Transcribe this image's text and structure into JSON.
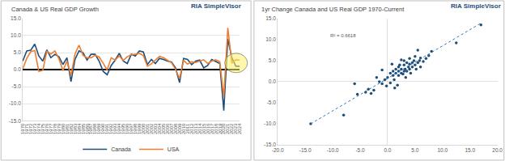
{
  "chart_data": [
    {
      "type": "line",
      "title": "Canada & US Real GDP Growth",
      "annotations": [
        {
          "text": "RIA SimpleVisor"
        }
      ],
      "x": [
        1970,
        1971,
        1972,
        1973,
        1974,
        1975,
        1976,
        1977,
        1978,
        1979,
        1980,
        1981,
        1982,
        1983,
        1984,
        1985,
        1986,
        1987,
        1988,
        1989,
        1990,
        1991,
        1992,
        1993,
        1994,
        1995,
        1996,
        1997,
        1998,
        1999,
        2000,
        2001,
        2002,
        2003,
        2004,
        2005,
        2006,
        2007,
        2008,
        2009,
        2010,
        2011,
        2012,
        2013,
        2014,
        2015,
        2016,
        2017,
        2018,
        2019,
        2020,
        2021,
        2022,
        2023,
        2024
      ],
      "series": [
        {
          "name": "Canada",
          "color": "#1f4e79",
          "values": [
            2.5,
            5.5,
            5.7,
            7.5,
            4.0,
            2.5,
            5.8,
            3.5,
            4.5,
            3.8,
            1.5,
            3.5,
            -3.5,
            3.0,
            5.5,
            5.0,
            2.8,
            4.5,
            4.5,
            2.5,
            -0.5,
            -1.5,
            1.2,
            2.8,
            4.8,
            2.5,
            1.8,
            4.5,
            4.0,
            5.5,
            5.2,
            1.5,
            3.0,
            1.8,
            3.3,
            3.0,
            2.5,
            2.2,
            0.5,
            -3.8,
            3.3,
            3.0,
            1.5,
            2.5,
            2.8,
            0.5,
            1.2,
            3.0,
            2.4,
            1.8,
            -12.0,
            9.0,
            3.5,
            1.0,
            1.0
          ]
        },
        {
          "name": "USA",
          "color": "#ed7d31",
          "values": [
            0.2,
            3.3,
            5.3,
            5.6,
            -0.5,
            -0.2,
            5.4,
            4.6,
            5.5,
            3.2,
            -0.3,
            2.5,
            -1.8,
            4.6,
            7.2,
            4.2,
            3.5,
            3.5,
            4.2,
            3.7,
            1.9,
            -0.1,
            3.5,
            2.8,
            4.0,
            2.7,
            3.8,
            4.4,
            4.5,
            4.8,
            4.1,
            1.0,
            1.7,
            2.8,
            3.9,
            3.5,
            2.8,
            2.0,
            0.1,
            -2.6,
            2.7,
            1.6,
            2.3,
            2.1,
            2.5,
            2.9,
            1.8,
            2.5,
            2.9,
            2.3,
            -8.0,
            12.3,
            1.9,
            2.9,
            2.8
          ]
        }
      ],
      "xlim": [
        1970,
        2024
      ],
      "xticks": [
        1970,
        1971,
        1972,
        1973,
        1974,
        1975,
        1976,
        1977,
        1978,
        1979,
        1980,
        1981,
        1982,
        1983,
        1984,
        1985,
        1986,
        1987,
        1988,
        1989,
        1990,
        1991,
        1992,
        1993,
        1994,
        1995,
        1996,
        1997,
        1998,
        1999,
        2000,
        2001,
        2002,
        2003,
        2004,
        2005,
        2006,
        2007,
        2008,
        2009,
        2010,
        2011,
        2012,
        2013,
        2014,
        2015,
        2016,
        2017,
        2018,
        2019,
        2020,
        2021,
        2022,
        2023,
        2024
      ],
      "ylim": [
        -15,
        15
      ],
      "yticks": [
        {
          "value": -15,
          "label": "-15.0"
        },
        {
          "value": -10,
          "label": "-10.0"
        },
        {
          "value": -5,
          "label": "-5.0"
        },
        {
          "value": 0,
          "label": "0.0"
        },
        {
          "value": 5,
          "label": "5.0"
        },
        {
          "value": 10,
          "label": "10.0"
        },
        {
          "value": 15,
          "label": "15.0"
        }
      ],
      "grid": true,
      "legend": "bottom"
    },
    {
      "type": "scatter",
      "title": "1yr Change Canada and US Real GDP 1970-Current",
      "annotations": [
        {
          "text": "R² = 0.6618"
        },
        {
          "text": "RIA SimpleVisor"
        }
      ],
      "series": [
        {
          "type": "scatter",
          "color": "#1f4e79",
          "marker": "circle",
          "x": [
            -14,
            17,
            12.5,
            -8,
            7,
            8,
            6,
            6.5,
            5.5,
            7.5,
            -4,
            -3.5,
            -3,
            -2.5,
            -1.5,
            -1,
            -0.5,
            -0.2,
            0,
            0.5,
            0.5,
            1,
            1,
            1.2,
            1.5,
            1.5,
            2,
            2,
            2,
            2.2,
            2.5,
            2.5,
            2.8,
            3,
            3,
            3,
            3.2,
            3.5,
            3.5,
            3.8,
            4,
            4,
            4,
            4.2,
            4.5,
            4.5,
            4.8,
            5,
            5,
            5.2,
            5.5,
            5.8,
            6,
            1.8,
            -1,
            -2,
            0.8,
            2.5,
            3.3,
            -5.5,
            -6,
            1.3
          ],
          "values": [
            -10,
            13.5,
            9.2,
            -7.9,
            5.5,
            7.2,
            5.6,
            4.8,
            7.5,
            6.2,
            -2.5,
            -1.8,
            -2.8,
            -2.0,
            0,
            -0.5,
            0.5,
            -1,
            1,
            -0.3,
            2,
            1.5,
            2.5,
            0.5,
            3,
            2,
            1.5,
            2.5,
            3.5,
            4,
            2,
            3,
            1.8,
            2.5,
            4,
            5,
            3,
            2.5,
            4.5,
            3.5,
            3,
            4.2,
            5.5,
            2,
            4.5,
            3.5,
            5,
            4,
            6,
            3,
            4.5,
            5,
            3.5,
            -0.8,
            2.8,
            1,
            4.2,
            5.2,
            1,
            -3,
            -0.5,
            -1.5
          ]
        },
        {
          "type": "line",
          "color": "#2e75b6",
          "line_style": "dotted",
          "x": [
            -14,
            17
          ],
          "values": [
            -10,
            13.9
          ]
        }
      ],
      "xlim": [
        -20,
        20
      ],
      "xticks": [
        {
          "value": -20,
          "label": "-20.0"
        },
        {
          "value": -15,
          "label": "-15.0"
        },
        {
          "value": -10,
          "label": "-10.0"
        },
        {
          "value": -5,
          "label": "-5.0"
        },
        {
          "value": 0,
          "label": "0.0"
        },
        {
          "value": 5,
          "label": "5.0"
        },
        {
          "value": 10,
          "label": "10.0"
        },
        {
          "value": 15,
          "label": "15.0"
        },
        {
          "value": 20,
          "label": "20.0"
        }
      ],
      "ylim": [
        -15,
        15
      ],
      "yticks": [
        {
          "value": -15,
          "label": "-15.0"
        },
        {
          "value": -10,
          "label": "-10.0"
        },
        {
          "value": -5,
          "label": "-5.0"
        },
        {
          "value": 0,
          "label": "0.0"
        },
        {
          "value": 5,
          "label": "5.0"
        },
        {
          "value": 10,
          "label": "10.0"
        },
        {
          "value": 15,
          "label": "15.0"
        }
      ],
      "grid": false
    }
  ]
}
